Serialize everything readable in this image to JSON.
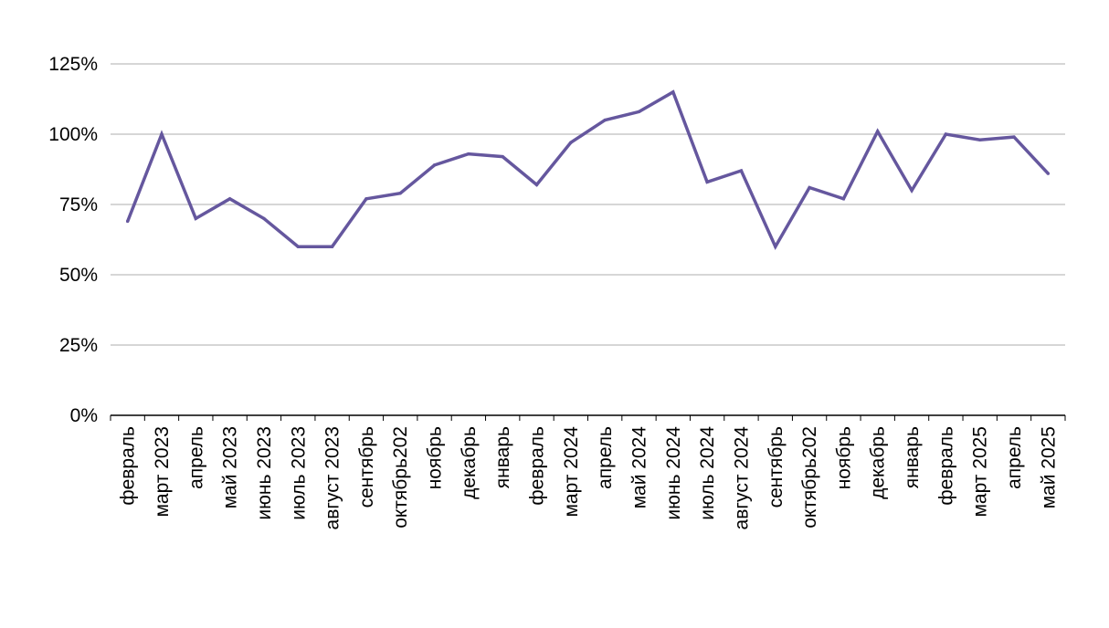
{
  "chart_data": {
    "type": "line",
    "title": "",
    "xlabel": "",
    "ylabel": "",
    "ylim": [
      0,
      125
    ],
    "yticks": [
      0,
      25,
      50,
      75,
      100,
      125
    ],
    "ytick_labels": [
      "0%",
      "25%",
      "50%",
      "75%",
      "100%",
      "125%"
    ],
    "grid": true,
    "legend": "none",
    "categories": [
      "февраль",
      "март 2023",
      "апрель",
      "май 2023",
      "июнь 2023",
      "июль 2023",
      "август 2023",
      "сентябрь",
      "октябрь202",
      "ноябрь",
      "декабрь",
      "январь",
      "февраль",
      "март 2024",
      "апрель",
      "май 2024",
      "июнь 2024",
      "июль 2024",
      "август 2024",
      "сентябрь",
      "октябрь202",
      "ноябрь",
      "декабрь",
      "январь",
      "февраль",
      "март 2025",
      "апрель",
      "май 2025"
    ],
    "series": [
      {
        "color": "#65579e",
        "values": [
          69,
          100,
          70,
          77,
          70,
          60,
          60,
          77,
          79,
          89,
          93,
          92,
          82,
          97,
          105,
          108,
          115,
          83,
          87,
          60,
          81,
          77,
          101,
          80,
          100,
          98,
          99,
          86
        ]
      }
    ]
  }
}
